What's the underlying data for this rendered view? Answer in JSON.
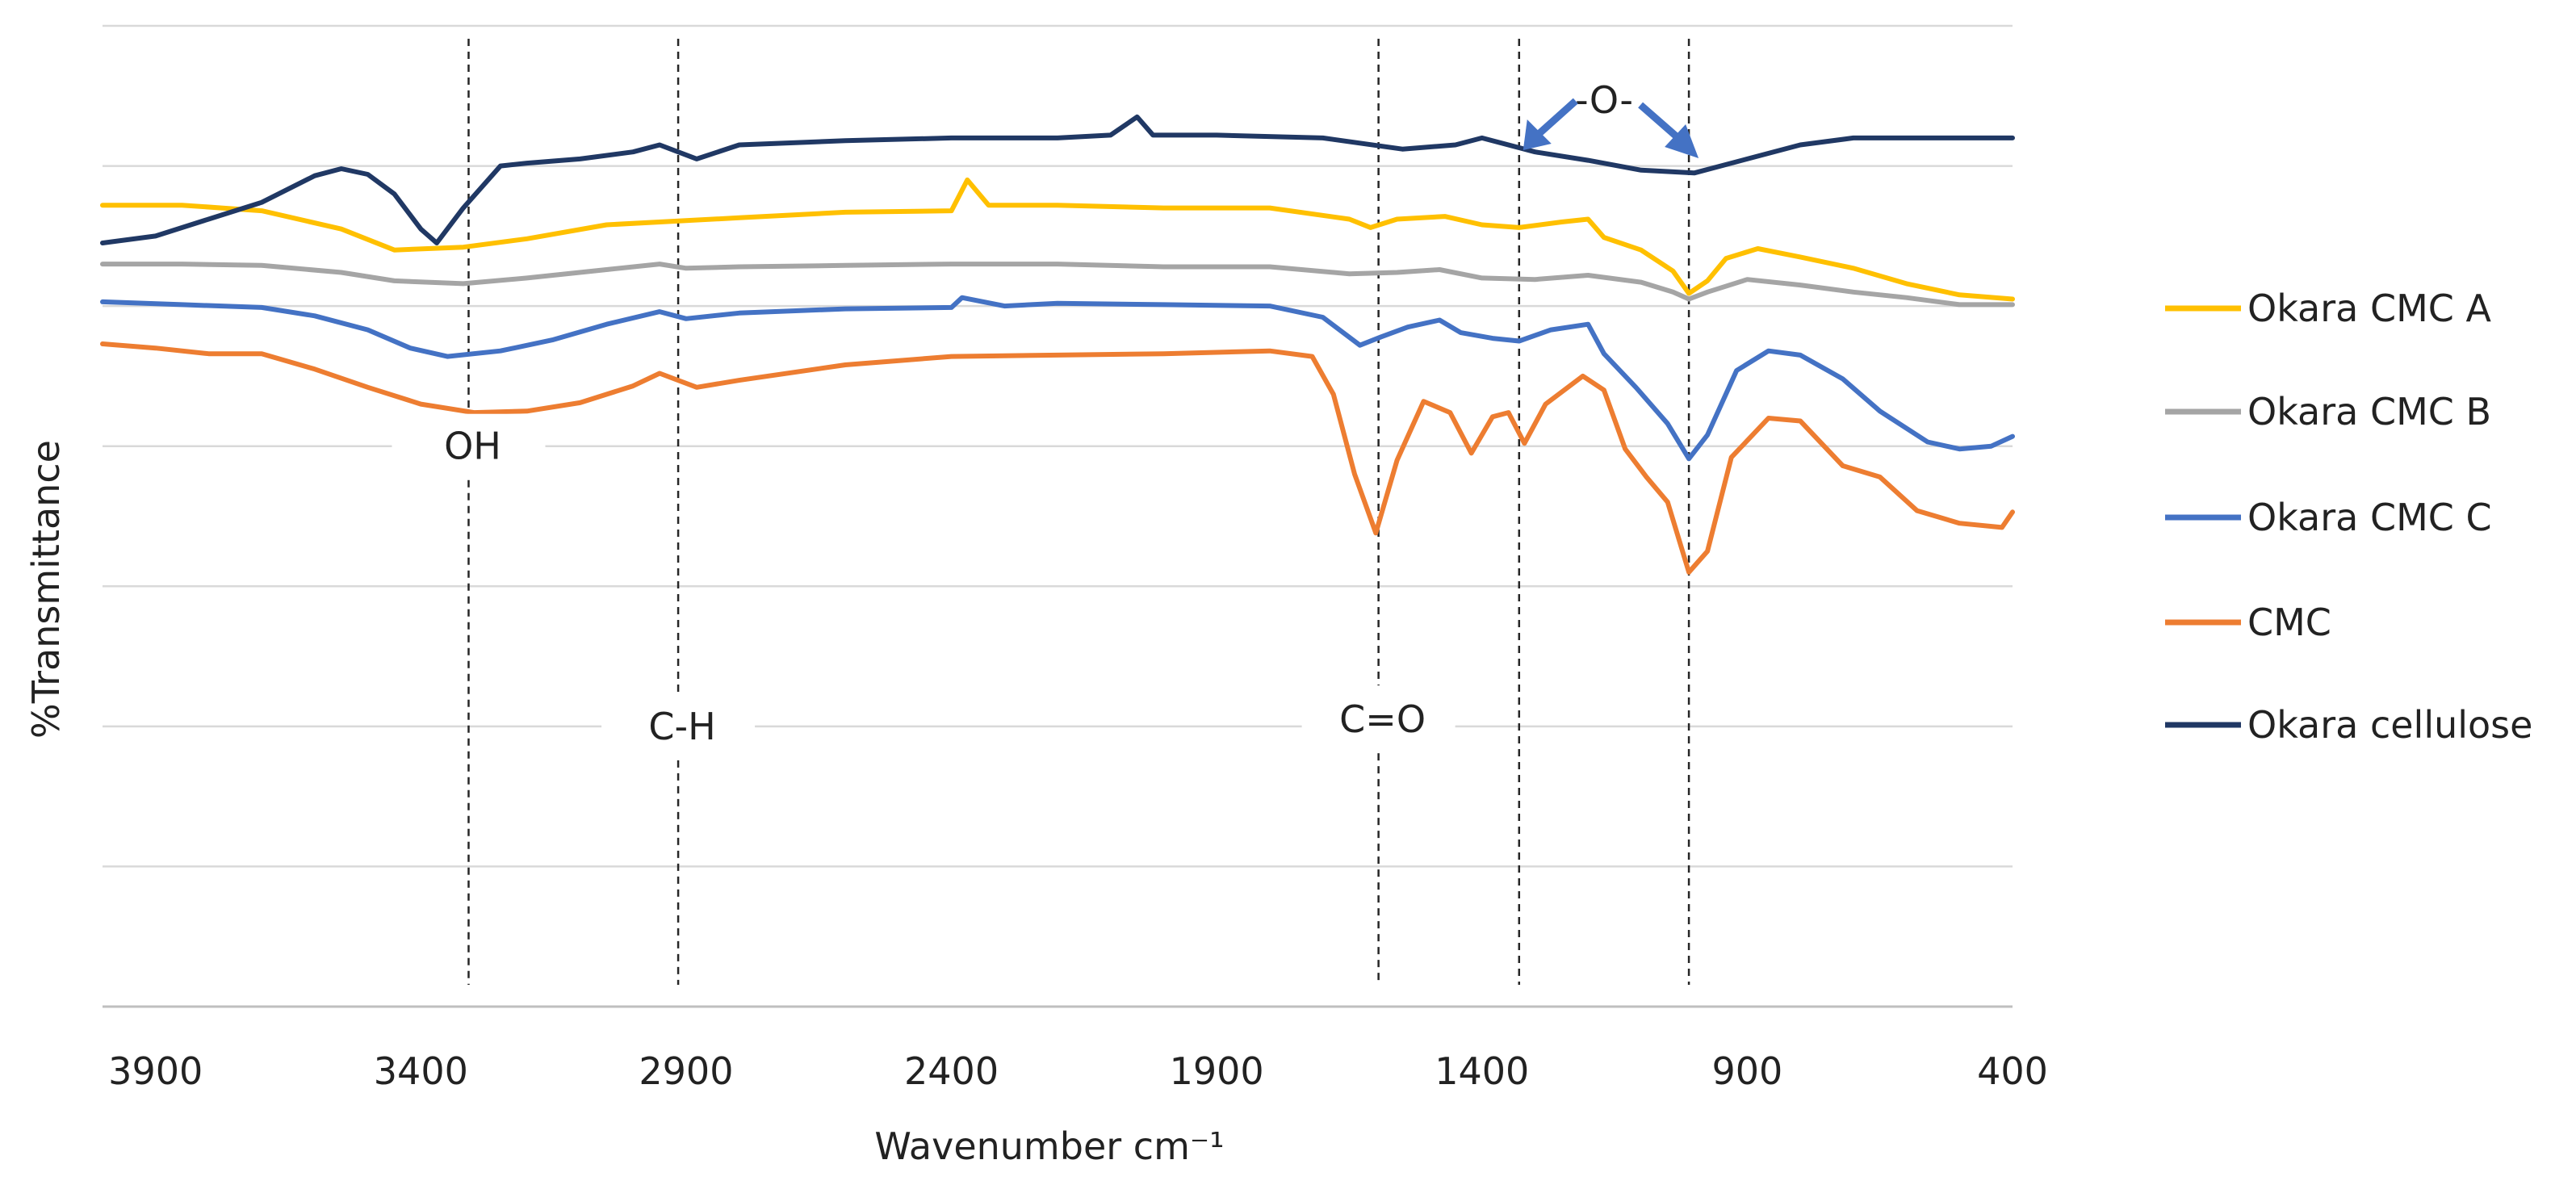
{
  "chart_data": {
    "type": "line",
    "title": "",
    "xlabel": "Wavenumber cm⁻¹",
    "ylabel": "%Transmittance",
    "xlim": [
      4000,
      400
    ],
    "x_reversed": true,
    "ylim": [
      0,
      7
    ],
    "grid": "horizontal",
    "y_gridlines": [
      0,
      1,
      2,
      3,
      4,
      5,
      6,
      7
    ],
    "x_ticks": [
      3900,
      3400,
      2900,
      2400,
      1900,
      1400,
      900,
      400
    ],
    "legend_position": "right",
    "series": [
      {
        "name": "Okara CMC A",
        "color": "#FFC000",
        "points": [
          [
            4000,
            5.72
          ],
          [
            3850,
            5.72
          ],
          [
            3700,
            5.68
          ],
          [
            3550,
            5.55
          ],
          [
            3450,
            5.4
          ],
          [
            3320,
            5.42
          ],
          [
            3200,
            5.48
          ],
          [
            3050,
            5.58
          ],
          [
            2900,
            5.61
          ],
          [
            2800,
            5.63
          ],
          [
            2600,
            5.67
          ],
          [
            2400,
            5.68
          ],
          [
            2370,
            5.9
          ],
          [
            2330,
            5.72
          ],
          [
            2200,
            5.72
          ],
          [
            2000,
            5.7
          ],
          [
            1800,
            5.7
          ],
          [
            1650,
            5.62
          ],
          [
            1610,
            5.56
          ],
          [
            1560,
            5.62
          ],
          [
            1470,
            5.64
          ],
          [
            1400,
            5.58
          ],
          [
            1330,
            5.56
          ],
          [
            1250,
            5.6
          ],
          [
            1200,
            5.62
          ],
          [
            1170,
            5.49
          ],
          [
            1100,
            5.4
          ],
          [
            1040,
            5.25
          ],
          [
            1010,
            5.09
          ],
          [
            975,
            5.18
          ],
          [
            940,
            5.34
          ],
          [
            880,
            5.41
          ],
          [
            800,
            5.35
          ],
          [
            700,
            5.27
          ],
          [
            600,
            5.16
          ],
          [
            500,
            5.08
          ],
          [
            400,
            5.05
          ]
        ]
      },
      {
        "name": "Okara CMC B",
        "color": "#A5A5A5",
        "points": [
          [
            4000,
            5.3
          ],
          [
            3850,
            5.3
          ],
          [
            3700,
            5.29
          ],
          [
            3550,
            5.24
          ],
          [
            3450,
            5.18
          ],
          [
            3320,
            5.16
          ],
          [
            3200,
            5.2
          ],
          [
            3050,
            5.26
          ],
          [
            2950,
            5.3
          ],
          [
            2900,
            5.27
          ],
          [
            2800,
            5.28
          ],
          [
            2600,
            5.29
          ],
          [
            2400,
            5.3
          ],
          [
            2200,
            5.3
          ],
          [
            2000,
            5.28
          ],
          [
            1800,
            5.28
          ],
          [
            1650,
            5.23
          ],
          [
            1560,
            5.24
          ],
          [
            1480,
            5.26
          ],
          [
            1400,
            5.2
          ],
          [
            1300,
            5.19
          ],
          [
            1200,
            5.22
          ],
          [
            1100,
            5.17
          ],
          [
            1040,
            5.1
          ],
          [
            1010,
            5.05
          ],
          [
            975,
            5.1
          ],
          [
            900,
            5.19
          ],
          [
            800,
            5.15
          ],
          [
            700,
            5.1
          ],
          [
            600,
            5.06
          ],
          [
            500,
            5.01
          ],
          [
            400,
            5.01
          ]
        ]
      },
      {
        "name": "Okara CMC C",
        "color": "#4472C4",
        "points": [
          [
            4000,
            5.03
          ],
          [
            3850,
            5.01
          ],
          [
            3700,
            4.99
          ],
          [
            3600,
            4.93
          ],
          [
            3500,
            4.83
          ],
          [
            3420,
            4.7
          ],
          [
            3350,
            4.64
          ],
          [
            3250,
            4.68
          ],
          [
            3150,
            4.76
          ],
          [
            3050,
            4.87
          ],
          [
            2950,
            4.96
          ],
          [
            2900,
            4.91
          ],
          [
            2800,
            4.95
          ],
          [
            2600,
            4.98
          ],
          [
            2400,
            4.99
          ],
          [
            2380,
            5.06
          ],
          [
            2300,
            5.0
          ],
          [
            2200,
            5.02
          ],
          [
            2000,
            5.01
          ],
          [
            1800,
            5.0
          ],
          [
            1700,
            4.92
          ],
          [
            1630,
            4.72
          ],
          [
            1590,
            4.78
          ],
          [
            1540,
            4.85
          ],
          [
            1480,
            4.9
          ],
          [
            1440,
            4.81
          ],
          [
            1380,
            4.77
          ],
          [
            1330,
            4.75
          ],
          [
            1270,
            4.83
          ],
          [
            1200,
            4.87
          ],
          [
            1170,
            4.66
          ],
          [
            1110,
            4.42
          ],
          [
            1050,
            4.16
          ],
          [
            1010,
            3.91
          ],
          [
            975,
            4.08
          ],
          [
            920,
            4.54
          ],
          [
            860,
            4.68
          ],
          [
            800,
            4.65
          ],
          [
            720,
            4.48
          ],
          [
            650,
            4.25
          ],
          [
            560,
            4.03
          ],
          [
            500,
            3.98
          ],
          [
            440,
            4.0
          ],
          [
            400,
            4.07
          ]
        ]
      },
      {
        "name": "CMC",
        "color": "#ED7D31",
        "points": [
          [
            4000,
            4.73
          ],
          [
            3900,
            4.7
          ],
          [
            3800,
            4.66
          ],
          [
            3700,
            4.66
          ],
          [
            3600,
            4.55
          ],
          [
            3500,
            4.42
          ],
          [
            3400,
            4.3
          ],
          [
            3300,
            4.24
          ],
          [
            3200,
            4.25
          ],
          [
            3100,
            4.31
          ],
          [
            3000,
            4.43
          ],
          [
            2950,
            4.52
          ],
          [
            2880,
            4.42
          ],
          [
            2800,
            4.47
          ],
          [
            2600,
            4.58
          ],
          [
            2400,
            4.64
          ],
          [
            2200,
            4.65
          ],
          [
            2000,
            4.66
          ],
          [
            1800,
            4.68
          ],
          [
            1720,
            4.64
          ],
          [
            1680,
            4.37
          ],
          [
            1640,
            3.8
          ],
          [
            1600,
            3.38
          ],
          [
            1560,
            3.9
          ],
          [
            1510,
            4.32
          ],
          [
            1460,
            4.24
          ],
          [
            1420,
            3.95
          ],
          [
            1380,
            4.21
          ],
          [
            1350,
            4.24
          ],
          [
            1320,
            4.02
          ],
          [
            1280,
            4.3
          ],
          [
            1210,
            4.5
          ],
          [
            1170,
            4.4
          ],
          [
            1130,
            3.98
          ],
          [
            1090,
            3.78
          ],
          [
            1050,
            3.6
          ],
          [
            1010,
            3.1
          ],
          [
            975,
            3.25
          ],
          [
            930,
            3.92
          ],
          [
            860,
            4.2
          ],
          [
            800,
            4.18
          ],
          [
            720,
            3.86
          ],
          [
            650,
            3.78
          ],
          [
            580,
            3.54
          ],
          [
            500,
            3.45
          ],
          [
            420,
            3.42
          ],
          [
            400,
            3.53
          ]
        ]
      },
      {
        "name": "Okara cellulose",
        "color": "#203864",
        "points": [
          [
            4000,
            5.45
          ],
          [
            3900,
            5.5
          ],
          [
            3800,
            5.62
          ],
          [
            3700,
            5.74
          ],
          [
            3600,
            5.93
          ],
          [
            3550,
            5.98
          ],
          [
            3500,
            5.94
          ],
          [
            3450,
            5.8
          ],
          [
            3400,
            5.55
          ],
          [
            3370,
            5.45
          ],
          [
            3320,
            5.7
          ],
          [
            3250,
            6.0
          ],
          [
            3200,
            6.02
          ],
          [
            3100,
            6.05
          ],
          [
            3000,
            6.1
          ],
          [
            2950,
            6.15
          ],
          [
            2880,
            6.05
          ],
          [
            2800,
            6.15
          ],
          [
            2600,
            6.18
          ],
          [
            2400,
            6.2
          ],
          [
            2200,
            6.2
          ],
          [
            2100,
            6.22
          ],
          [
            2050,
            6.35
          ],
          [
            2020,
            6.22
          ],
          [
            1900,
            6.22
          ],
          [
            1700,
            6.2
          ],
          [
            1550,
            6.12
          ],
          [
            1450,
            6.15
          ],
          [
            1400,
            6.2
          ],
          [
            1300,
            6.1
          ],
          [
            1200,
            6.04
          ],
          [
            1100,
            5.97
          ],
          [
            1000,
            5.95
          ],
          [
            900,
            6.05
          ],
          [
            800,
            6.15
          ],
          [
            700,
            6.2
          ],
          [
            600,
            6.2
          ],
          [
            500,
            6.2
          ],
          [
            400,
            6.2
          ]
        ]
      }
    ],
    "annotations": [
      {
        "label": "OH",
        "x": 3310
      },
      {
        "label": "C-H",
        "x": 2915
      },
      {
        "label": "C=O",
        "x": 1595
      },
      {
        "label": "-O-",
        "x": [
          1330,
          1010
        ],
        "arrows": true
      }
    ]
  }
}
